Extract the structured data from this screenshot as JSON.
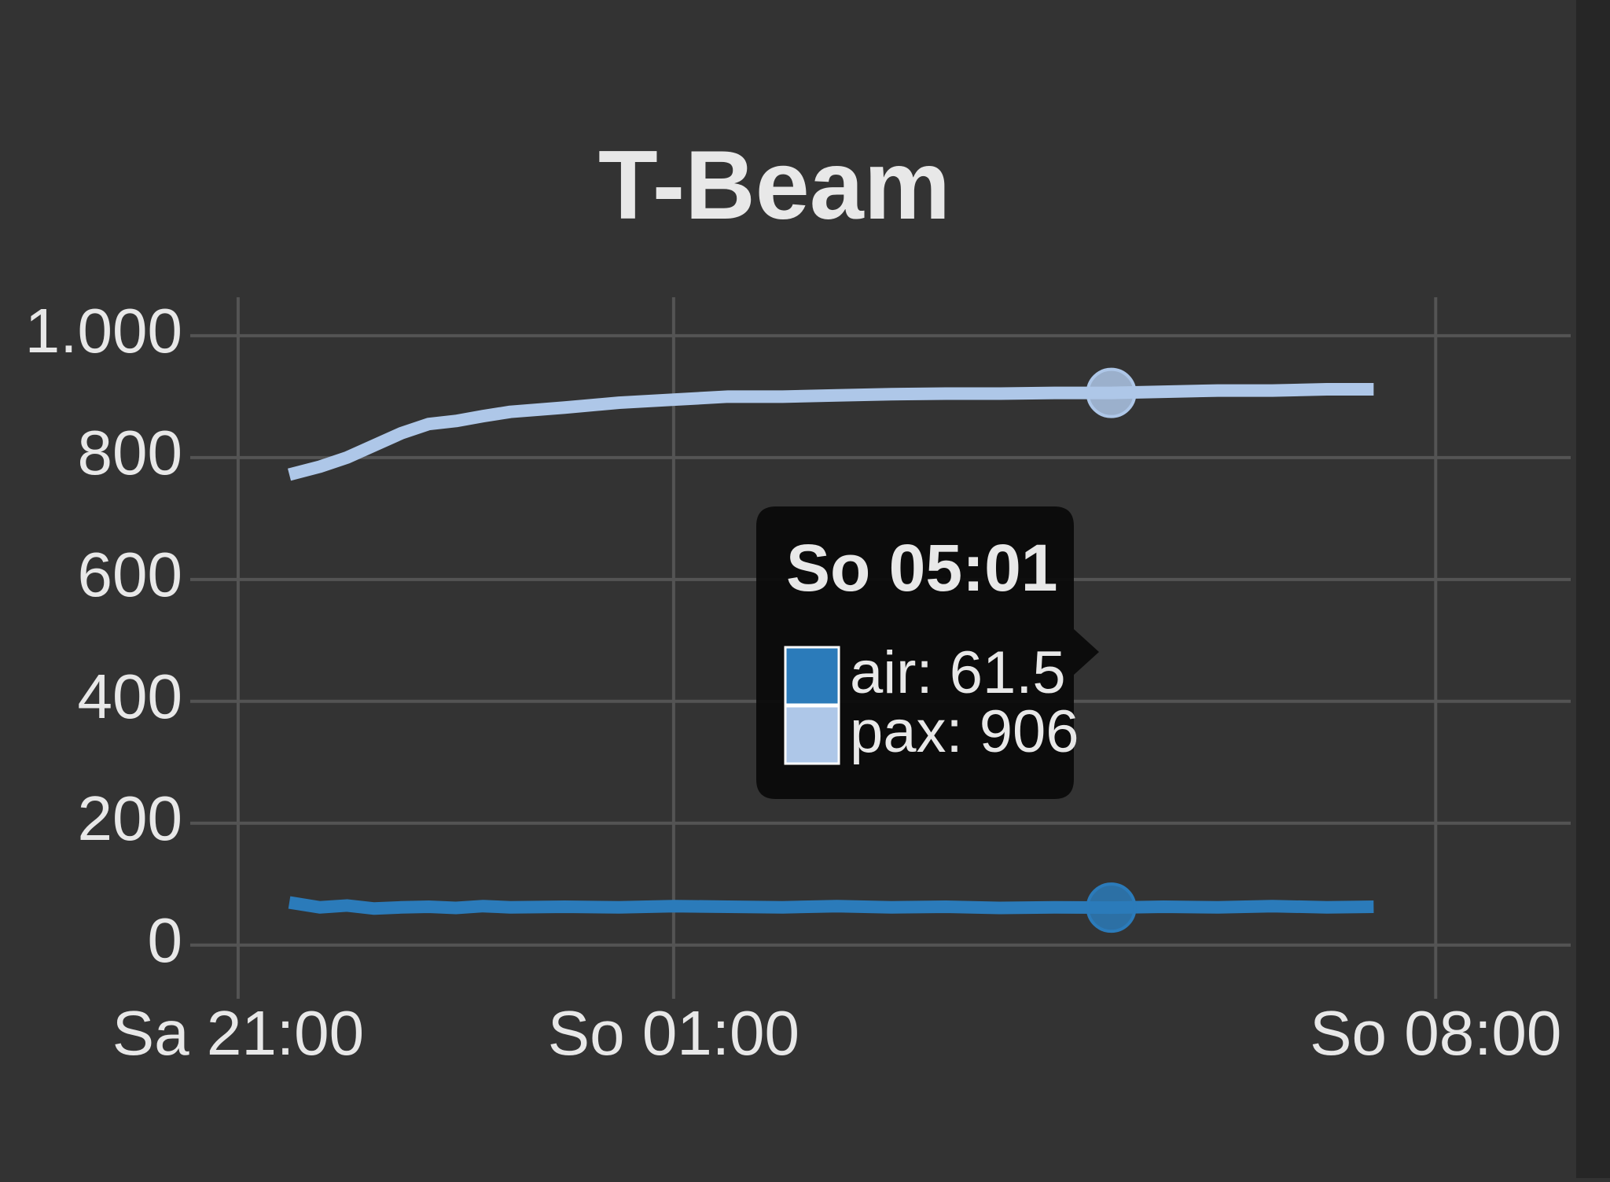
{
  "chart_data": {
    "type": "line",
    "title": "T-Beam",
    "x": [
      21.47,
      21.75,
      22.0,
      22.25,
      22.5,
      22.75,
      23.0,
      23.25,
      23.5,
      24.0,
      24.5,
      25.0,
      25.5,
      26.0,
      26.5,
      27.0,
      27.5,
      28.0,
      28.5,
      29.02,
      29.5,
      30.0,
      30.5,
      31.0,
      31.43
    ],
    "series": [
      {
        "name": "air",
        "color": "#2b7bba",
        "values": [
          70,
          62,
          65,
          60,
          62,
          63,
          61,
          64,
          62,
          63,
          62,
          64,
          63,
          62,
          64,
          62,
          63,
          61,
          62,
          61.5,
          63,
          62,
          64,
          62,
          63
        ]
      },
      {
        "name": "pax",
        "color": "#aec7e8",
        "values": [
          772,
          785,
          800,
          820,
          840,
          855,
          860,
          868,
          875,
          882,
          890,
          895,
          900,
          900,
          902,
          904,
          905,
          905,
          906,
          906,
          908,
          910,
          910,
          912,
          912
        ]
      }
    ],
    "xlim": [
      20.56,
      33.24
    ],
    "xticks": [
      {
        "value": 21,
        "label": "Sa 21:00"
      },
      {
        "value": 25,
        "label": "So 01:00"
      },
      {
        "value": 32,
        "label": "So 08:00"
      }
    ],
    "ylim": [
      -88,
      1063
    ],
    "yticks": [
      0,
      200,
      400,
      600,
      800,
      {
        "value": 1000,
        "label": "1.000"
      }
    ],
    "grid": true,
    "tooltip": {
      "x": {
        "value": 29.02,
        "label": "So 05:01"
      },
      "items": [
        "air: 61.5",
        "pax: 906"
      ]
    }
  }
}
